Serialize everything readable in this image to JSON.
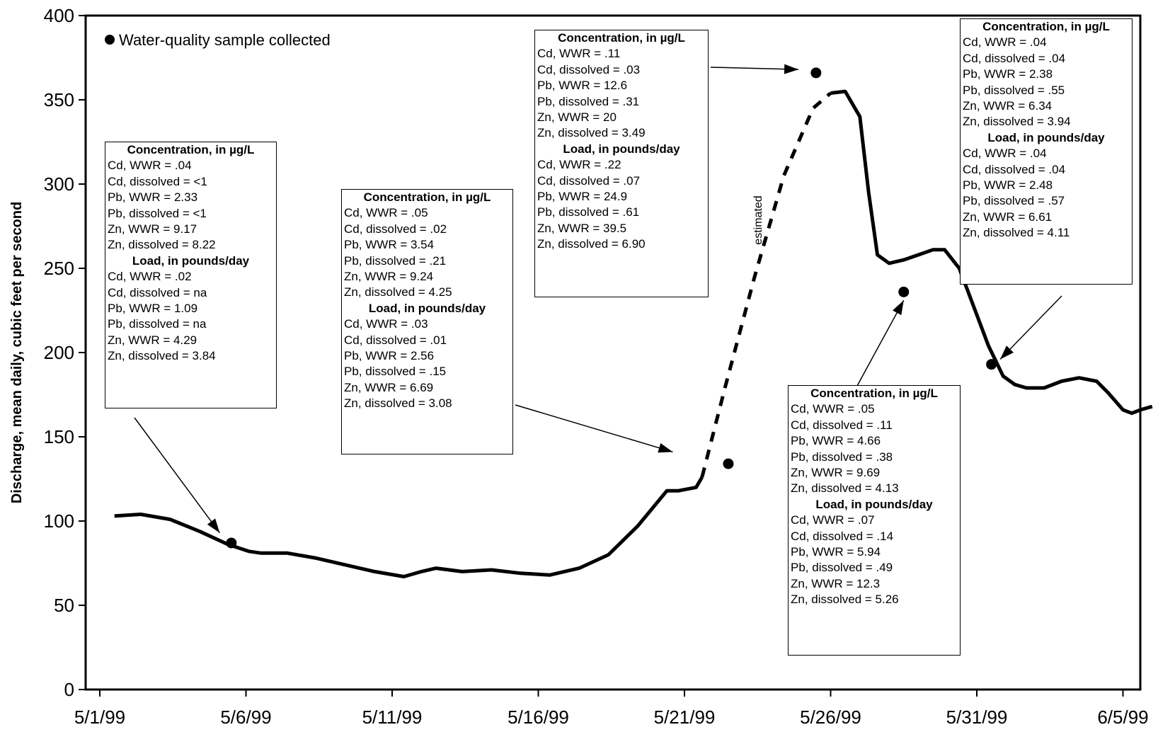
{
  "chart_data": {
    "type": "line",
    "title": "",
    "xlabel": "",
    "ylabel": "Discharge, mean daily, cubic feet per second",
    "ylim": [
      0,
      400
    ],
    "yticks": [
      0,
      50,
      100,
      150,
      200,
      250,
      300,
      350,
      400
    ],
    "xlim_days": [
      0,
      35.8
    ],
    "xticks": [
      {
        "label": "5/1/99",
        "day": 0
      },
      {
        "label": "5/6/99",
        "day": 5
      },
      {
        "label": "5/11/99",
        "day": 10
      },
      {
        "label": "5/16/99",
        "day": 15
      },
      {
        "label": "5/21/99",
        "day": 20
      },
      {
        "label": "5/26/99",
        "day": 25
      },
      {
        "label": "5/31/99",
        "day": 30
      },
      {
        "label": "6/5/99",
        "day": 35
      }
    ],
    "series": [
      {
        "style": "solid",
        "points": [
          [
            0.5,
            103
          ],
          [
            1.4,
            104
          ],
          [
            2.4,
            101
          ],
          [
            3.4,
            94
          ],
          [
            4.4,
            86
          ],
          [
            5.1,
            82
          ],
          [
            5.5,
            81
          ],
          [
            6.4,
            81
          ],
          [
            7.4,
            78
          ],
          [
            8.4,
            74
          ],
          [
            9.4,
            70
          ],
          [
            10.4,
            67
          ],
          [
            11.0,
            70
          ],
          [
            11.5,
            72
          ],
          [
            12.4,
            70
          ],
          [
            13.4,
            71
          ],
          [
            14.4,
            69
          ],
          [
            15.4,
            68
          ],
          [
            16.4,
            72
          ],
          [
            17.4,
            80
          ],
          [
            18.4,
            97
          ],
          [
            19.4,
            118
          ],
          [
            19.8,
            118
          ],
          [
            20.4,
            120
          ],
          [
            20.6,
            126
          ]
        ]
      },
      {
        "name": "estimated",
        "style": "dashed",
        "points": [
          [
            20.6,
            126
          ],
          [
            21.4,
            180
          ],
          [
            22.4,
            245
          ],
          [
            23.4,
            305
          ],
          [
            24.4,
            345
          ],
          [
            25.0,
            354
          ]
        ]
      },
      {
        "style": "solid",
        "points": [
          [
            25.0,
            354
          ],
          [
            25.5,
            355
          ],
          [
            26.0,
            340
          ],
          [
            26.3,
            295
          ],
          [
            26.6,
            258
          ],
          [
            27.0,
            253
          ],
          [
            27.5,
            255
          ],
          [
            28.0,
            258
          ],
          [
            28.5,
            261
          ],
          [
            28.9,
            261
          ],
          [
            29.4,
            250
          ],
          [
            29.9,
            227
          ],
          [
            30.4,
            204
          ],
          [
            30.9,
            186
          ],
          [
            31.3,
            181
          ],
          [
            31.7,
            179
          ],
          [
            32.3,
            179
          ],
          [
            32.9,
            183
          ],
          [
            33.5,
            185
          ],
          [
            34.1,
            183
          ],
          [
            34.5,
            176
          ],
          [
            35.0,
            166
          ],
          [
            35.3,
            164
          ],
          [
            35.6,
            166
          ],
          [
            36.0,
            168
          ]
        ]
      }
    ],
    "samples": [
      [
        4.5,
        87
      ],
      [
        21.5,
        134
      ],
      [
        24.5,
        366
      ],
      [
        27.5,
        236
      ],
      [
        30.5,
        193
      ]
    ],
    "legend": "Water-quality sample collected",
    "annotations": [
      {
        "title1": "Concentration, in µg/L",
        "conc": [
          "Cd, WWR = .04",
          "Cd, dissolved = <1",
          "Pb, WWR = 2.33",
          "Pb, dissolved = <1",
          "Zn, WWR = 9.17",
          "Zn, dissolved = 8.22"
        ],
        "title2": "Load, in pounds/day",
        "load": [
          "Cd, WWR = .02",
          "Cd, dissolved = na",
          "Pb, WWR = 1.09",
          "Pb, dissolved = na",
          "Zn, WWR = 4.29",
          "Zn, dissolved = 3.84"
        ]
      },
      {
        "title1": "Concentration, in µg/L",
        "conc": [
          "Cd, WWR = .05",
          "Cd, dissolved = .02",
          "Pb, WWR = 3.54",
          "Pb, dissolved = .21",
          "Zn, WWR = 9.24",
          "Zn, dissolved = 4.25"
        ],
        "title2": "Load, in pounds/day",
        "load": [
          "Cd, WWR = .03",
          "Cd, dissolved = .01",
          "Pb, WWR = 2.56",
          "Pb, dissolved = .15",
          "Zn, WWR = 6.69",
          "Zn, dissolved = 3.08"
        ]
      },
      {
        "title1": "Concentration, in µg/L",
        "conc": [
          "Cd, WWR = .11",
          "Cd, dissolved = .03",
          "Pb, WWR = 12.6",
          "Pb, dissolved = .31",
          "Zn, WWR = 20",
          "Zn, dissolved = 3.49"
        ],
        "title2": "Load, in pounds/day",
        "load": [
          "Cd, WWR = .22",
          "Cd, dissolved = .07",
          "Pb, WWR = 24.9",
          "Pb, dissolved = .61",
          "Zn, WWR = 39.5",
          "Zn, dissolved = 6.90"
        ]
      },
      {
        "title1": "Concentration, in µg/L",
        "conc": [
          "Cd, WWR = .05",
          "Cd, dissolved = .11",
          "Pb, WWR = 4.66",
          "Pb, dissolved = .38",
          "Zn, WWR = 9.69",
          "Zn, dissolved = 4.13"
        ],
        "title2": "Load, in pounds/day",
        "load": [
          "Cd, WWR = .07",
          "Cd, dissolved = .14",
          "Pb, WWR = 5.94",
          "Pb, dissolved = .49",
          "Zn, WWR = 12.3",
          "Zn, dissolved = 5.26"
        ]
      },
      {
        "title1": "Concentration, in µg/L",
        "conc": [
          "Cd, WWR = .04",
          "Cd, dissolved = .04",
          "Pb, WWR = 2.38",
          "Pb, dissolved = .55",
          "Zn, WWR = 6.34",
          "Zn, dissolved = 3.94"
        ],
        "title2": "Load, in pounds/day",
        "load": [
          "Cd, WWR = .04",
          "Cd, dissolved = .04",
          "Pb, WWR = 2.48",
          "Pb, dissolved = .57",
          "Zn, WWR = 6.61",
          "Zn, dissolved = 4.11"
        ]
      }
    ]
  }
}
